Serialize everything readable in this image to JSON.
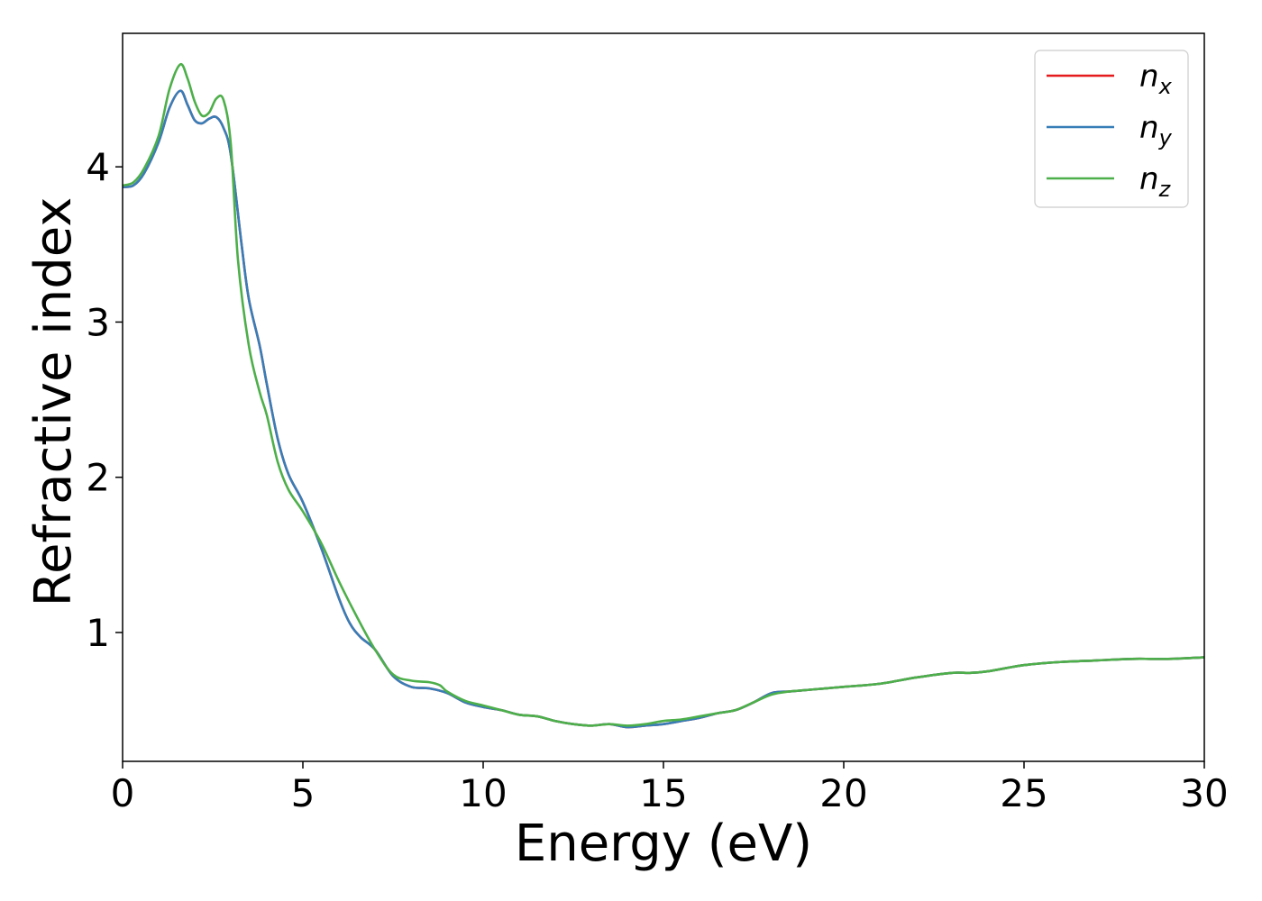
{
  "chart_data": {
    "type": "line",
    "xlabel": "Energy (eV)",
    "ylabel": "Refractive index",
    "xlim": [
      0,
      30
    ],
    "ylim": [
      0.17,
      4.86
    ],
    "xticks": [
      "0",
      "5",
      "10",
      "15",
      "20",
      "25",
      "30"
    ],
    "yticks": [
      "1",
      "2",
      "3",
      "4"
    ],
    "grid": false,
    "legend_position": "top-right",
    "series": [
      {
        "name": "n",
        "subscript": "x",
        "color": "#e41a1c",
        "x": [
          0,
          0.3,
          0.6,
          1.0,
          1.3,
          1.6,
          1.8,
          2.0,
          2.2,
          2.4,
          2.6,
          2.8,
          3.0,
          3.3,
          3.5,
          3.8,
          4.0,
          4.3,
          4.6,
          5.0,
          5.5,
          6.0,
          6.3,
          6.6,
          7.0,
          7.5,
          8.0,
          8.5,
          9.0,
          9.5,
          10.0,
          10.5,
          11.0,
          11.5,
          12.0,
          12.5,
          13.0,
          13.5,
          14.0,
          14.5,
          15.0,
          15.5,
          16.0,
          16.5,
          17.0,
          17.5,
          18.0,
          18.5,
          19.0,
          19.5,
          20.0,
          21.0,
          22.0,
          23.0,
          23.5,
          24.0,
          25.0,
          26.0,
          27.0,
          28.0,
          29.0,
          30.0
        ],
        "y": [
          3.87,
          3.88,
          3.96,
          4.16,
          4.38,
          4.49,
          4.4,
          4.3,
          4.28,
          4.31,
          4.32,
          4.25,
          4.08,
          3.5,
          3.15,
          2.85,
          2.6,
          2.25,
          2.02,
          1.84,
          1.55,
          1.22,
          1.06,
          0.97,
          0.89,
          0.72,
          0.65,
          0.64,
          0.61,
          0.55,
          0.52,
          0.5,
          0.47,
          0.46,
          0.43,
          0.41,
          0.4,
          0.41,
          0.39,
          0.4,
          0.41,
          0.43,
          0.45,
          0.48,
          0.5,
          0.55,
          0.61,
          0.62,
          0.63,
          0.64,
          0.65,
          0.67,
          0.71,
          0.74,
          0.74,
          0.75,
          0.79,
          0.81,
          0.82,
          0.83,
          0.83,
          0.84
        ]
      },
      {
        "name": "n",
        "subscript": "y",
        "color": "#377eb8",
        "x": [
          0,
          0.3,
          0.6,
          1.0,
          1.3,
          1.6,
          1.8,
          2.0,
          2.2,
          2.4,
          2.6,
          2.8,
          3.0,
          3.3,
          3.5,
          3.8,
          4.0,
          4.3,
          4.6,
          5.0,
          5.5,
          6.0,
          6.3,
          6.6,
          7.0,
          7.5,
          8.0,
          8.5,
          9.0,
          9.5,
          10.0,
          10.5,
          11.0,
          11.5,
          12.0,
          12.5,
          13.0,
          13.5,
          14.0,
          14.5,
          15.0,
          15.5,
          16.0,
          16.5,
          17.0,
          17.5,
          18.0,
          18.5,
          19.0,
          19.5,
          20.0,
          21.0,
          22.0,
          23.0,
          23.5,
          24.0,
          25.0,
          26.0,
          27.0,
          28.0,
          29.0,
          30.0
        ],
        "y": [
          3.87,
          3.88,
          3.96,
          4.16,
          4.38,
          4.49,
          4.4,
          4.3,
          4.28,
          4.31,
          4.32,
          4.25,
          4.08,
          3.5,
          3.15,
          2.85,
          2.6,
          2.25,
          2.02,
          1.84,
          1.55,
          1.22,
          1.06,
          0.97,
          0.89,
          0.72,
          0.65,
          0.64,
          0.61,
          0.55,
          0.52,
          0.5,
          0.47,
          0.46,
          0.43,
          0.41,
          0.4,
          0.41,
          0.39,
          0.4,
          0.41,
          0.43,
          0.45,
          0.48,
          0.5,
          0.55,
          0.61,
          0.62,
          0.63,
          0.64,
          0.65,
          0.67,
          0.71,
          0.74,
          0.74,
          0.75,
          0.79,
          0.81,
          0.82,
          0.83,
          0.83,
          0.84
        ]
      },
      {
        "name": "n",
        "subscript": "z",
        "color": "#4daf4a",
        "x": [
          0,
          0.3,
          0.6,
          1.0,
          1.3,
          1.6,
          1.8,
          2.0,
          2.2,
          2.4,
          2.6,
          2.8,
          3.0,
          3.2,
          3.5,
          3.8,
          4.0,
          4.3,
          4.6,
          5.0,
          5.5,
          6.0,
          6.5,
          7.0,
          7.5,
          8.0,
          8.5,
          8.8,
          9.0,
          9.5,
          10.0,
          10.5,
          11.0,
          11.5,
          12.0,
          12.5,
          13.0,
          13.5,
          14.0,
          14.5,
          15.0,
          15.5,
          16.0,
          16.5,
          17.0,
          17.5,
          18.0,
          18.5,
          19.0,
          19.5,
          20.0,
          21.0,
          22.0,
          23.0,
          23.5,
          24.0,
          25.0,
          26.0,
          27.0,
          28.0,
          29.0,
          30.0
        ],
        "y": [
          3.88,
          3.9,
          3.99,
          4.2,
          4.5,
          4.66,
          4.57,
          4.42,
          4.33,
          4.35,
          4.44,
          4.43,
          4.15,
          3.4,
          2.85,
          2.55,
          2.4,
          2.1,
          1.92,
          1.78,
          1.58,
          1.33,
          1.1,
          0.89,
          0.73,
          0.69,
          0.68,
          0.66,
          0.62,
          0.56,
          0.53,
          0.5,
          0.47,
          0.46,
          0.43,
          0.41,
          0.4,
          0.41,
          0.4,
          0.41,
          0.43,
          0.44,
          0.46,
          0.48,
          0.5,
          0.55,
          0.6,
          0.62,
          0.63,
          0.64,
          0.65,
          0.67,
          0.71,
          0.74,
          0.74,
          0.75,
          0.79,
          0.81,
          0.82,
          0.83,
          0.83,
          0.84
        ]
      }
    ]
  }
}
